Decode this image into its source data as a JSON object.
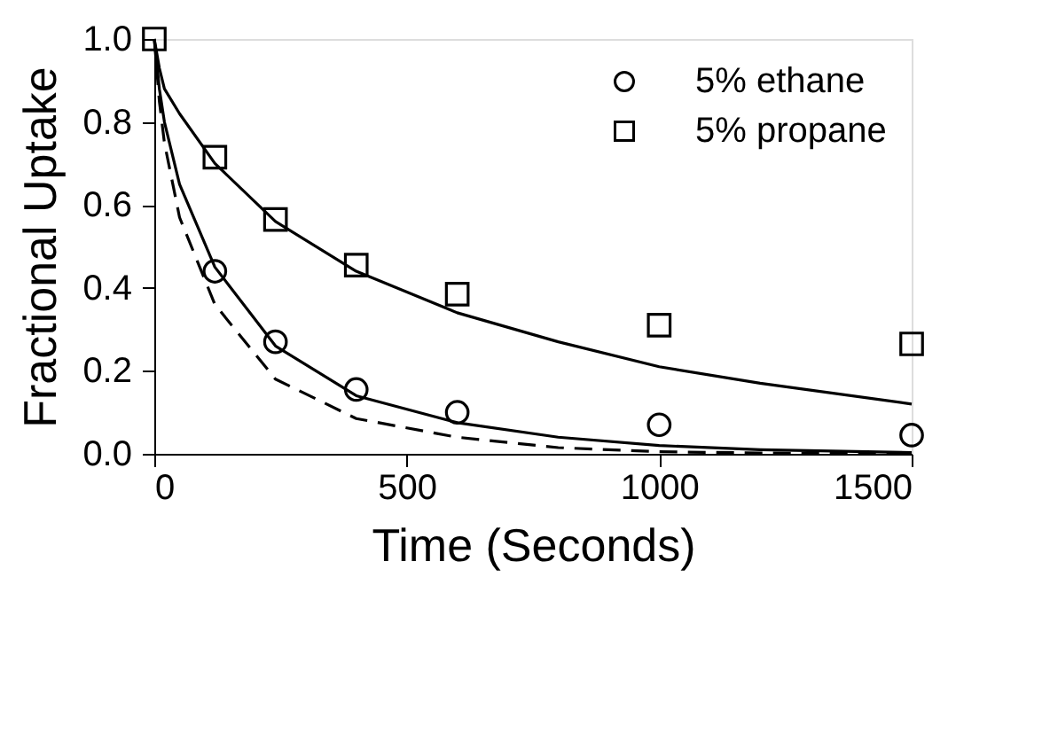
{
  "chart_data": {
    "type": "line",
    "xlabel": "Time (Seconds)",
    "ylabel": "Fractional Uptake",
    "xlim": [
      0,
      1500
    ],
    "xticks": [
      0,
      500,
      1000,
      1500
    ],
    "ylim": [
      0,
      1.0
    ],
    "yticks": [
      {
        "value": 0,
        "label": "0.0"
      },
      {
        "value": 0.2,
        "label": "0.2"
      },
      {
        "value": 0.4,
        "label": "0.4"
      },
      {
        "value": 0.6,
        "label": "0.6"
      },
      {
        "value": 0.8,
        "label": "0.8"
      },
      {
        "value": 1.0,
        "label": "1.0"
      }
    ],
    "grid": false,
    "legend": "top right",
    "series": [
      {
        "name": "5% ethane",
        "type": "scatter",
        "marker": "circle",
        "color": "#000000",
        "x": [
          120,
          240,
          400,
          600,
          1000,
          1500
        ],
        "values": [
          0.44,
          0.27,
          0.155,
          0.1,
          0.07,
          0.045
        ]
      },
      {
        "name": "5% propane",
        "type": "scatter",
        "marker": "square",
        "color": "#000000",
        "x": [
          0,
          120,
          240,
          400,
          600,
          1000,
          1500
        ],
        "values": [
          1.0,
          0.715,
          0.565,
          0.455,
          0.385,
          0.31,
          0.265
        ]
      },
      {
        "line_style": "solid",
        "color": "#000000",
        "x": [
          0,
          10,
          20,
          50,
          120,
          240,
          400,
          600,
          800,
          1000,
          1200,
          1500
        ],
        "values": [
          1.0,
          0.93,
          0.88,
          0.82,
          0.7,
          0.56,
          0.44,
          0.34,
          0.27,
          0.21,
          0.17,
          0.12
        ]
      },
      {
        "line_style": "solid",
        "color": "#000000",
        "x": [
          0,
          10,
          20,
          50,
          120,
          240,
          400,
          600,
          800,
          1000,
          1200,
          1500
        ],
        "values": [
          1.0,
          0.88,
          0.8,
          0.65,
          0.45,
          0.26,
          0.14,
          0.075,
          0.04,
          0.02,
          0.01,
          0.003
        ]
      },
      {
        "line_style": "dashed",
        "color": "#000000",
        "x": [
          0,
          10,
          20,
          50,
          120,
          240,
          400,
          600,
          800,
          1000,
          1200,
          1500
        ],
        "values": [
          1.0,
          0.85,
          0.75,
          0.57,
          0.36,
          0.18,
          0.085,
          0.04,
          0.015,
          0.005,
          0.002,
          0.0
        ]
      }
    ]
  }
}
